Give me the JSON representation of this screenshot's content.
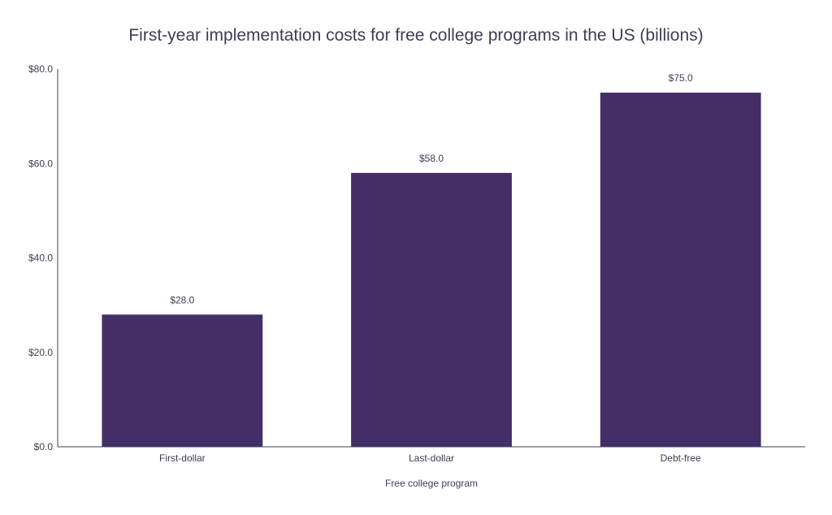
{
  "chart_data": {
    "type": "bar",
    "title": "First-year implementation costs for free college programs in the US (billions)",
    "xlabel": "Free college program",
    "ylabel": "",
    "categories": [
      "First-dollar",
      "Last-dollar",
      "Debt-free"
    ],
    "values": [
      28.0,
      58.0,
      75.0
    ],
    "data_labels": [
      "$28.0",
      "$58.0",
      "$75.0"
    ],
    "ylim": [
      0,
      80
    ],
    "y_ticks": [
      0,
      20,
      40,
      60,
      80
    ],
    "y_tick_labels": [
      "$0.0",
      "$20.0",
      "$40.0",
      "$60.0",
      "$80.0"
    ],
    "grid": false,
    "legend": "none",
    "colors": {
      "bar": "#432e68",
      "axis": "#3f3d56",
      "text": "#3f3d56"
    }
  }
}
